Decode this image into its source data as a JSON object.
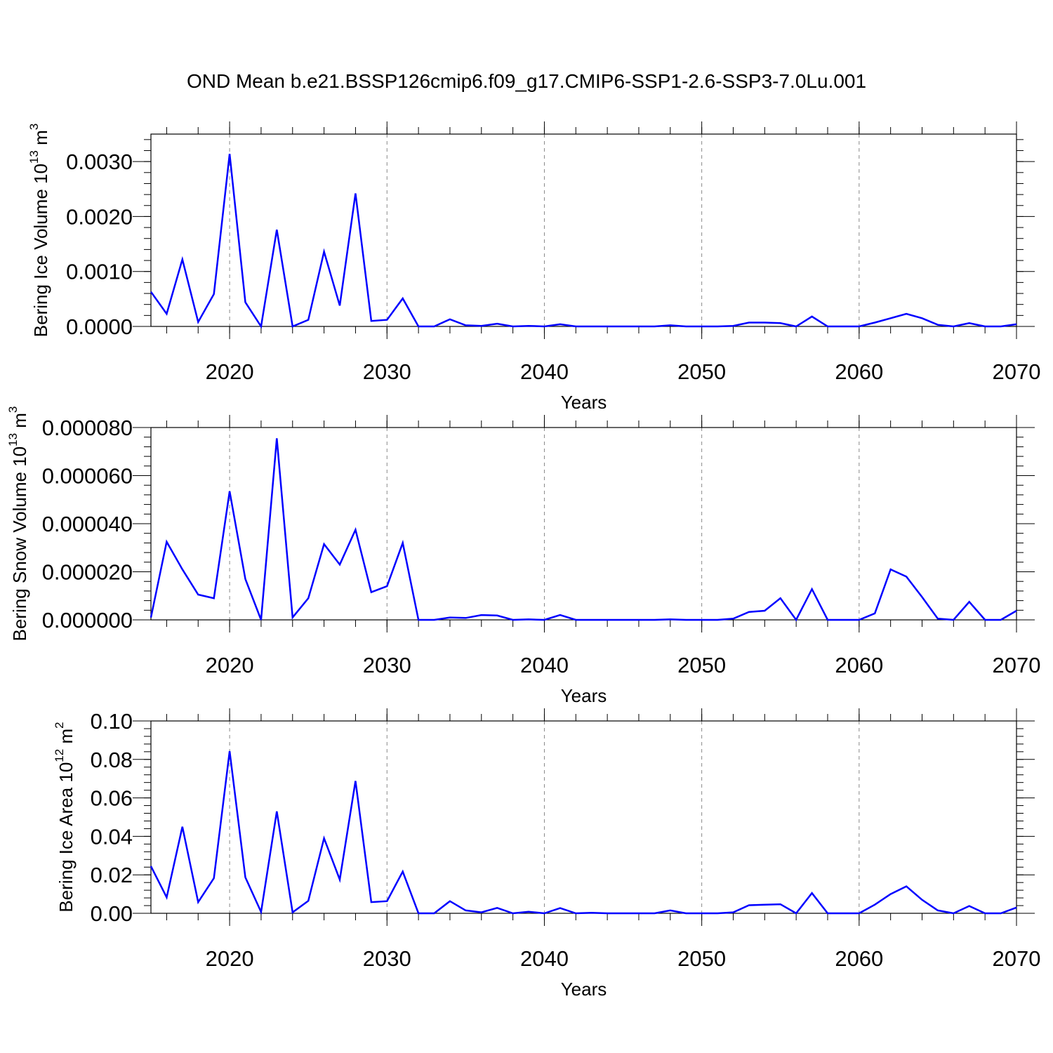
{
  "chart_data": [
    {
      "type": "line",
      "title": "OND Mean b.e21.BSSP126cmip6.f09_g17.CMIP6-SSP1-2.6-SSP3-7.0Lu.001",
      "xlabel": "Years",
      "ylabel": "Bering Ice Volume 10",
      "ylabel_sup": "13",
      "ylabel_unit": " m",
      "ylabel_unit_sup": "3",
      "xlim": [
        2015,
        2070
      ],
      "ylim": [
        0,
        0.0035
      ],
      "x_ticks": [
        "2020",
        "2030",
        "2040",
        "2050",
        "2060",
        "2070"
      ],
      "y_ticks": [
        "0.0000",
        "0.0010",
        "0.0020",
        "0.0030"
      ],
      "x_grid": "dashed vertical lines at major ticks",
      "line_color": "#0000ff",
      "x": [
        2015,
        2016,
        2017,
        2018,
        2019,
        2020,
        2021,
        2022,
        2023,
        2024,
        2025,
        2026,
        2027,
        2028,
        2029,
        2030,
        2031,
        2032,
        2033,
        2034,
        2035,
        2036,
        2037,
        2038,
        2039,
        2040,
        2041,
        2042,
        2043,
        2044,
        2045,
        2046,
        2047,
        2048,
        2049,
        2050,
        2051,
        2052,
        2053,
        2054,
        2055,
        2056,
        2057,
        2058,
        2059,
        2060,
        2061,
        2062,
        2063,
        2064,
        2065,
        2066,
        2067,
        2068,
        2069,
        2070
      ],
      "values": [
        0.00063,
        0.00023,
        0.00122,
        8e-05,
        0.00059,
        0.00314,
        0.00044,
        0.0,
        0.00176,
        0.0,
        0.00012,
        0.00136,
        0.00038,
        0.00242,
        0.0001,
        0.00012,
        0.00051,
        0.0,
        0.0,
        0.00013,
        2e-05,
        1e-05,
        5e-05,
        0.0,
        1e-05,
        0.0,
        4e-05,
        0.0,
        0.0,
        0.0,
        0.0,
        0.0,
        0.0,
        2e-05,
        0.0,
        0.0,
        0.0,
        1e-05,
        7e-05,
        7e-05,
        6e-05,
        0.0,
        0.00018,
        0.0,
        0.0,
        0.0,
        7e-05,
        0.00015,
        0.00023,
        0.00015,
        3e-05,
        0.0,
        6e-05,
        0.0,
        0.0,
        4e-05
      ]
    },
    {
      "type": "line",
      "xlabel": "Years",
      "ylabel": "Bering Snow Volume 10",
      "ylabel_sup": "13",
      "ylabel_unit": " m",
      "ylabel_unit_sup": "3",
      "xlim": [
        2015,
        2070
      ],
      "ylim": [
        0,
        8e-05
      ],
      "x_ticks": [
        "2020",
        "2030",
        "2040",
        "2050",
        "2060",
        "2070"
      ],
      "y_ticks": [
        "0.000000",
        "0.000020",
        "0.000040",
        "0.000060",
        "0.000080"
      ],
      "x_grid": "dashed vertical lines at major ticks",
      "line_color": "#0000ff",
      "x": [
        2015,
        2016,
        2017,
        2018,
        2019,
        2020,
        2021,
        2022,
        2023,
        2024,
        2025,
        2026,
        2027,
        2028,
        2029,
        2030,
        2031,
        2032,
        2033,
        2034,
        2035,
        2036,
        2037,
        2038,
        2039,
        2040,
        2041,
        2042,
        2043,
        2044,
        2045,
        2046,
        2047,
        2048,
        2049,
        2050,
        2051,
        2052,
        2053,
        2054,
        2055,
        2056,
        2057,
        2058,
        2059,
        2060,
        2061,
        2062,
        2063,
        2064,
        2065,
        2066,
        2067,
        2068,
        2069,
        2070
      ],
      "values": [
        1e-06,
        3.25e-05,
        2.1e-05,
        1.05e-05,
        9e-06,
        5.35e-05,
        1.7e-05,
        0.0,
        7.55e-05,
        1e-06,
        9e-06,
        3.15e-05,
        2.3e-05,
        3.75e-05,
        1.15e-05,
        1.4e-05,
        3.2e-05,
        0.0,
        0.0,
        1e-06,
        8e-07,
        2e-06,
        1.8e-06,
        0.0,
        2e-07,
        0.0,
        2e-06,
        0.0,
        0.0,
        0.0,
        0.0,
        0.0,
        0.0,
        2e-07,
        0.0,
        0.0,
        0.0,
        5e-07,
        3.3e-06,
        3.8e-06,
        9e-06,
        0.0,
        1.28e-05,
        0.0,
        0.0,
        0.0,
        2.7e-06,
        2.1e-05,
        1.8e-05,
        9.5e-06,
        5e-07,
        0.0,
        7.5e-06,
        0.0,
        0.0,
        3.8e-06
      ]
    },
    {
      "type": "line",
      "xlabel": "Years",
      "ylabel": "Bering Ice Area 10",
      "ylabel_sup": "12",
      "ylabel_unit": " m",
      "ylabel_unit_sup": "2",
      "xlim": [
        2015,
        2070
      ],
      "ylim": [
        0,
        0.1
      ],
      "x_ticks": [
        "2020",
        "2030",
        "2040",
        "2050",
        "2060",
        "2070"
      ],
      "y_ticks": [
        "0.00",
        "0.02",
        "0.04",
        "0.06",
        "0.08",
        "0.10"
      ],
      "x_grid": "dashed vertical lines at major ticks",
      "line_color": "#0000ff",
      "x": [
        2015,
        2016,
        2017,
        2018,
        2019,
        2020,
        2021,
        2022,
        2023,
        2024,
        2025,
        2026,
        2027,
        2028,
        2029,
        2030,
        2031,
        2032,
        2033,
        2034,
        2035,
        2036,
        2037,
        2038,
        2039,
        2040,
        2041,
        2042,
        2043,
        2044,
        2045,
        2046,
        2047,
        2048,
        2049,
        2050,
        2051,
        2052,
        2053,
        2054,
        2055,
        2056,
        2057,
        2058,
        2059,
        2060,
        2061,
        2062,
        2063,
        2064,
        2065,
        2066,
        2067,
        2068,
        2069,
        2070
      ],
      "values": [
        0.0245,
        0.0083,
        0.045,
        0.0058,
        0.0183,
        0.0843,
        0.0187,
        0.0007,
        0.053,
        0.0005,
        0.0065,
        0.039,
        0.0175,
        0.0688,
        0.0058,
        0.0063,
        0.0217,
        0.0,
        0.0,
        0.0063,
        0.0015,
        0.0005,
        0.0028,
        0.0,
        0.0008,
        0.0,
        0.0027,
        0.0,
        0.0003,
        0.0,
        0.0,
        0.0,
        0.0,
        0.0015,
        0.0,
        0.0,
        0.0,
        0.0005,
        0.0042,
        0.0045,
        0.0047,
        0.0,
        0.0105,
        0.0,
        0.0,
        0.0,
        0.0045,
        0.01,
        0.014,
        0.007,
        0.0015,
        0.0,
        0.0038,
        0.0,
        0.0,
        0.003
      ]
    }
  ]
}
